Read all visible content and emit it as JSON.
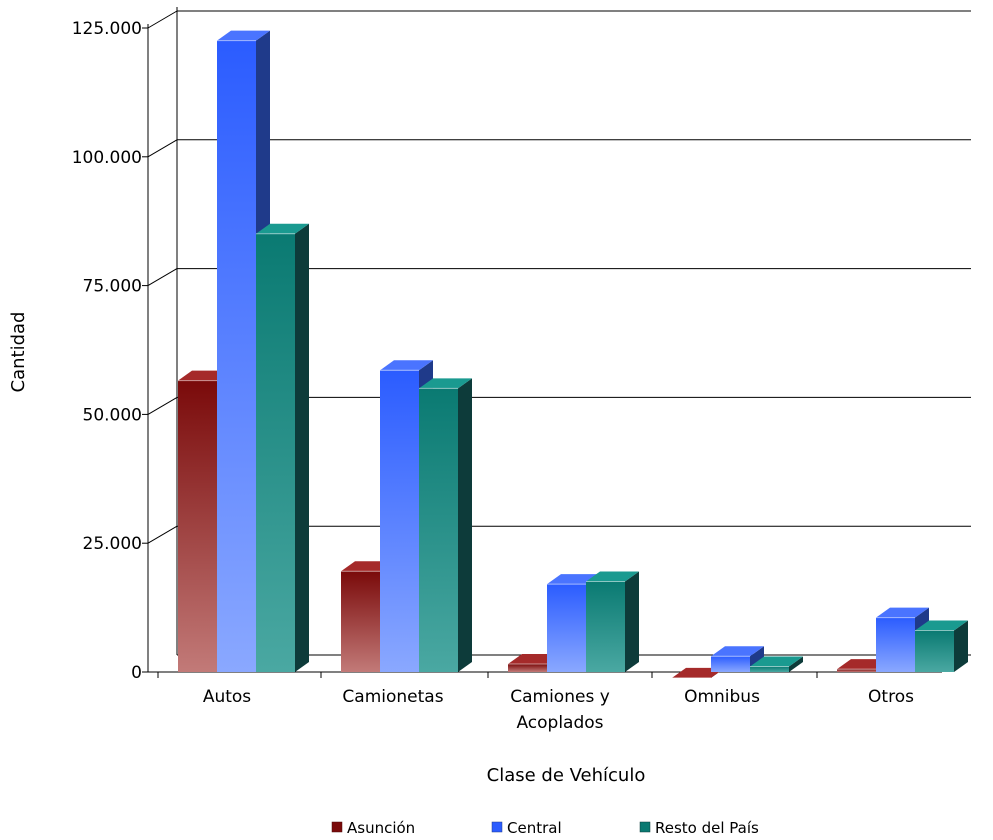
{
  "chart_data": {
    "type": "bar",
    "style": "3d-clustered",
    "categories": [
      [
        "Autos"
      ],
      [
        "Camionetas"
      ],
      [
        "Camiones y",
        "Acoplados"
      ],
      [
        "Omnibus"
      ],
      [
        "Otros"
      ]
    ],
    "series": [
      {
        "name": "Asunción",
        "values": [
          58500,
          21500,
          3500,
          800,
          2500
        ]
      },
      {
        "name": "Central",
        "values": [
          124500,
          60500,
          19000,
          5000,
          12500
        ]
      },
      {
        "name": "Resto del País",
        "values": [
          87000,
          57000,
          19500,
          3000,
          10000
        ]
      }
    ],
    "title": "",
    "xlabel": "Clase de Vehículo",
    "ylabel": "Cantidad",
    "ylim": [
      0,
      125000
    ],
    "yticks": [
      0,
      25000,
      50000,
      75000,
      100000,
      125000
    ],
    "ytick_labels": [
      "0",
      "25.000",
      "50.000",
      "75.000",
      "100.000",
      "125.000"
    ],
    "grid": true,
    "legend_position": "bottom",
    "colors": {
      "Asunción": {
        "front_top": "#7a0a0a",
        "front_bottom": "#c27a78",
        "top": "#a52a2a",
        "side": "#4a0a0a"
      },
      "Central": {
        "front_top": "#2b5cff",
        "front_bottom": "#8aa8ff",
        "top": "#4a74ff",
        "side": "#1f3a8a"
      },
      "Resto del País": {
        "front_top": "#0a7a72",
        "front_bottom": "#4aa8a2",
        "top": "#1a9a90",
        "side": "#0d3b3a"
      }
    }
  }
}
